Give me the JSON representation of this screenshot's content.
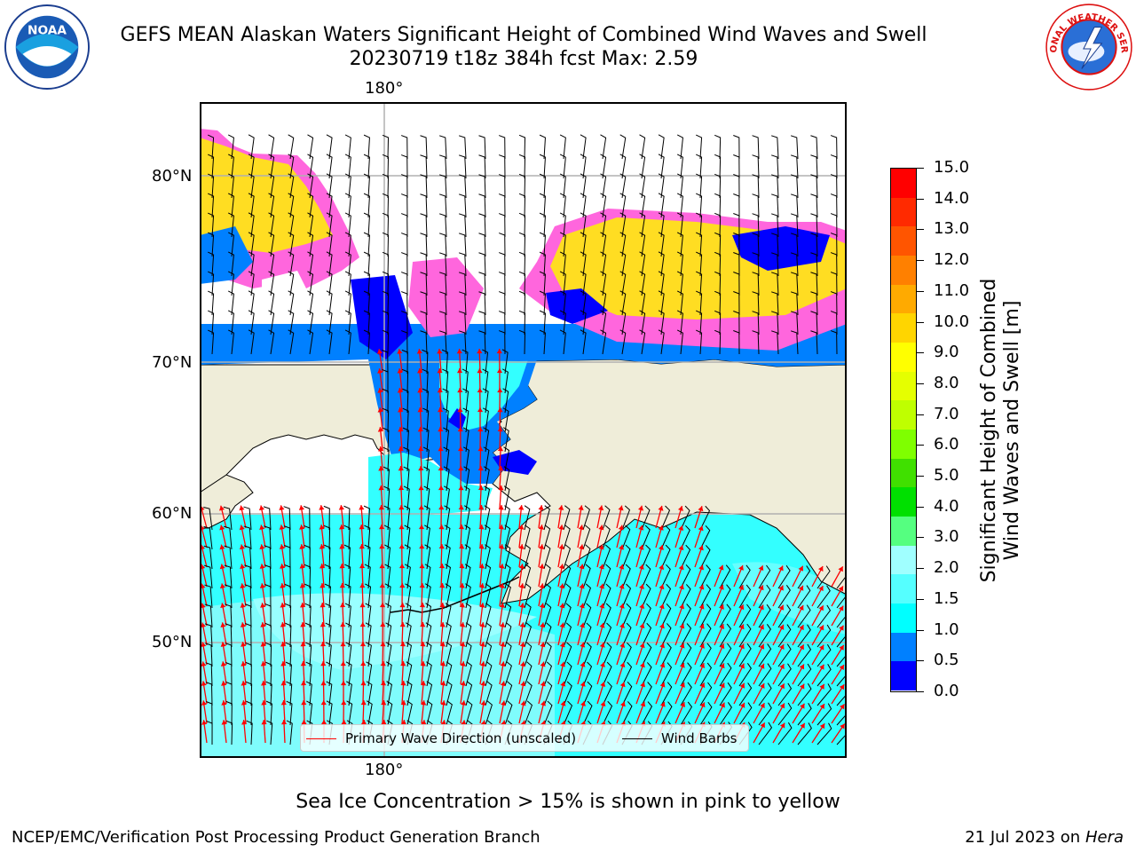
{
  "header": {
    "title_line1": "GEFS MEAN Alaskan Waters Significant Height of Combined Wind Waves and Swell",
    "title_line2": "20230719 t18z 384h fcst   Max: 2.59"
  },
  "logos": {
    "left": {
      "name": "noaa-logo",
      "text": "NOAA",
      "ring_text": "NATIONAL OCEANIC AND ATMOSPHERIC ADMINISTRATION · U.S. DEPARTMENT OF COMMERCE"
    },
    "right": {
      "name": "nws-logo",
      "ring_text": "NATIONAL WEATHER SERVICE"
    }
  },
  "map": {
    "longitude_label_top": "180°",
    "longitude_label_bottom": "180°",
    "latitude_labels": [
      "80°N",
      "70°N",
      "60°N",
      "50°N"
    ],
    "colors": {
      "land": "#efedd9",
      "open_water": "#33ffff",
      "light_water": "#99ffff",
      "shallow_water": "#0080ff",
      "deep_blue": "#0000ff",
      "ice_pink": "#ff66dd",
      "ice_orange": "#ffaa22",
      "ice_yellow": "#ffdd22",
      "wave_arrow": "#ff0000",
      "wind_barb": "#000000",
      "grid": "#b0b0b0"
    },
    "legend": {
      "wave_label": "Primary Wave Direction (unscaled)",
      "wind_label": "Wind Barbs"
    }
  },
  "colorbar": {
    "title_line1": "Significant Height of Combined",
    "title_line2": "Wind Waves and Swell [m]",
    "ticks": [
      "15.0",
      "14.0",
      "13.0",
      "12.0",
      "11.0",
      "10.0",
      "9.0",
      "8.0",
      "7.0",
      "6.0",
      "5.0",
      "4.0",
      "3.0",
      "2.0",
      "1.5",
      "1.0",
      "0.5",
      "0.0"
    ],
    "bands_top_to_bottom": [
      "#ff0000",
      "#ff2a00",
      "#ff5500",
      "#ff8000",
      "#ffaa00",
      "#ffd500",
      "#ffff00",
      "#e5ff00",
      "#bfff00",
      "#7fff00",
      "#40e000",
      "#00e000",
      "#55ff80",
      "#a0ffff",
      "#55ffff",
      "#00ffff",
      "#0080ff",
      "#0000ff"
    ]
  },
  "caption": "Sea Ice Concentration > 15% is shown in pink to yellow",
  "footer": {
    "left": "NCEP/EMC/Verification Post Processing Product Generation Branch",
    "right_date": "21 Jul 2023 on ",
    "right_host": "Hera"
  }
}
